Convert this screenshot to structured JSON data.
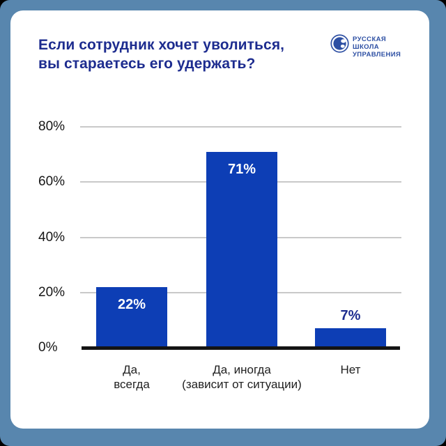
{
  "header": {
    "title": "Если сотрудник хочет уволиться,\nвы стараетесь его удержать?"
  },
  "logo": {
    "text": "РУССКАЯ\nШКОЛА\nУПРАВЛЕНИЯ"
  },
  "colors": {
    "frame": "#5886ae",
    "card": "#ffffff",
    "title": "#1d2c8f",
    "logo": "#2d4fa3",
    "bar": "#0d3eb5",
    "grid_line": "#c9c9c9",
    "axis_line": "#141414",
    "tick_text": "#161616",
    "category_text": "#1f1f1f",
    "value_inside": "#ffffff",
    "value_above": "#1d2c8f"
  },
  "chart_data": {
    "type": "bar",
    "title": "Если сотрудник хочет уволиться, вы стараетесь его удержать?",
    "categories": [
      [
        "Да,",
        "всегда"
      ],
      [
        "Да, иногда",
        "(зависит от ситуации)"
      ],
      [
        "Нет"
      ]
    ],
    "values": [
      22,
      71,
      7
    ],
    "value_labels": [
      "22%",
      "71%",
      "7%"
    ],
    "value_label_placement": [
      "inside",
      "inside",
      "above"
    ],
    "ytick_values": [
      80,
      60,
      40,
      20,
      0
    ],
    "ytick_labels": [
      "80%",
      "60%%",
      "40%",
      "20%",
      "0%"
    ],
    "ylim": [
      0,
      80
    ],
    "grid": true,
    "legend": false,
    "xlabel": "",
    "ylabel": ""
  }
}
